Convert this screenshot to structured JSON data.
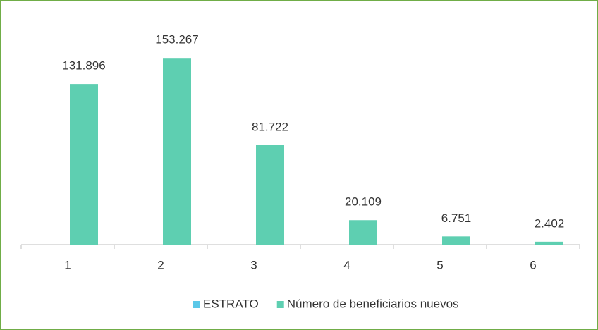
{
  "chart_data": {
    "type": "bar",
    "categories": [
      "1",
      "2",
      "3",
      "4",
      "5",
      "6"
    ],
    "series": [
      {
        "name": "ESTRATO",
        "color": "#5bc8e8",
        "values": [
          1,
          2,
          3,
          4,
          5,
          6
        ]
      },
      {
        "name": "Número de beneficiarios nuevos",
        "color": "#5ecfb1",
        "values": [
          131896,
          153267,
          81722,
          20109,
          6751,
          2402
        ],
        "value_labels": [
          "131.896",
          "153.267",
          "81.722",
          "20.109",
          "6.751",
          "2.402"
        ]
      }
    ],
    "ylim": [
      0,
      180000
    ]
  }
}
